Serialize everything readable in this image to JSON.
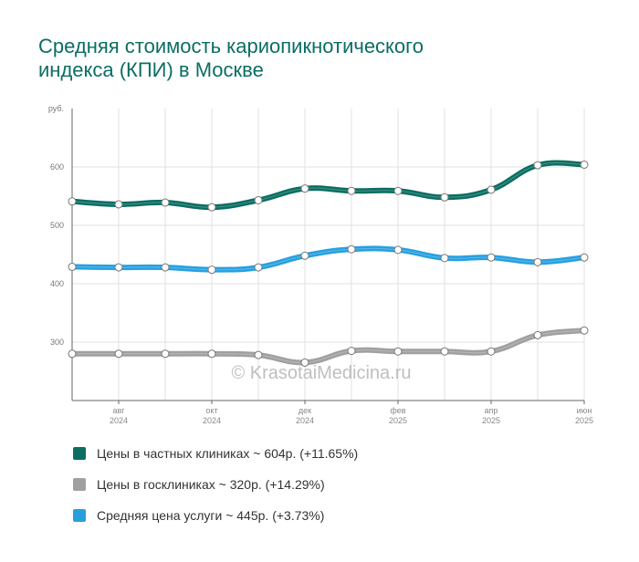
{
  "chart_data": {
    "type": "line",
    "title_lines": [
      "Средняя стоимость кариопикнотического",
      "индекса (КПИ) в Москве"
    ],
    "ylabel": "руб.",
    "ylim": [
      200,
      700
    ],
    "yticks": [
      300,
      400,
      500,
      600
    ],
    "x": [
      "2024-07",
      "2024-08",
      "2024-09",
      "2024-10",
      "2024-11",
      "2024-12",
      "2025-01",
      "2025-02",
      "2025-03",
      "2025-04",
      "2025-05",
      "2025-06"
    ],
    "x_tick_labels": [
      {
        "x": "2024-08",
        "month": "авг",
        "year": "2024"
      },
      {
        "x": "2024-10",
        "month": "окт",
        "year": "2024"
      },
      {
        "x": "2024-12",
        "month": "дек",
        "year": "2024"
      },
      {
        "x": "2025-02",
        "month": "фев",
        "year": "2025"
      },
      {
        "x": "2025-04",
        "month": "апр",
        "year": "2025"
      },
      {
        "x": "2025-06",
        "month": "июн",
        "year": "2025"
      }
    ],
    "grid": true,
    "series": [
      {
        "name": "Цены в частных клиниках ~ 604р. (+11.65%)",
        "color": "#0b6e62",
        "values": [
          541,
          536,
          539,
          531,
          543,
          563,
          559,
          559,
          548,
          561,
          603,
          604
        ]
      },
      {
        "name": "Цены в госклиниках ~ 320р. (+14.29%)",
        "color": "#a0a0a0",
        "values": [
          280,
          280,
          280,
          280,
          278,
          265,
          285,
          284,
          284,
          284,
          312,
          320
        ]
      },
      {
        "name": "Средняя цена услуги ~ 445р. (+3.73%)",
        "color": "#28a0e0",
        "values": [
          429,
          428,
          428,
          424,
          428,
          448,
          459,
          458,
          444,
          445,
          437,
          445
        ]
      }
    ],
    "legend_placement": "bottom",
    "watermark": "© KrasotaiMedicina.ru"
  }
}
